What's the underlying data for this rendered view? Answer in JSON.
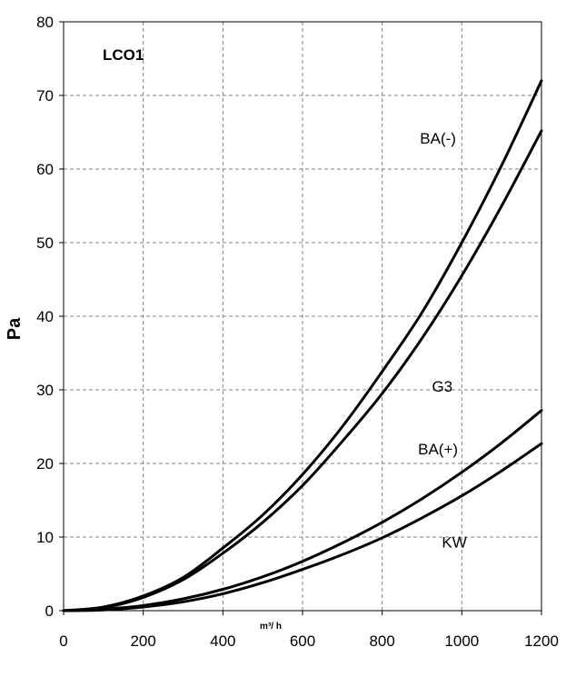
{
  "chart_data": {
    "type": "line",
    "title": "LCO1",
    "xlabel": "m³/ h",
    "ylabel": "Pa",
    "xlim": [
      0,
      1200
    ],
    "ylim": [
      0,
      80
    ],
    "x_ticks": [
      "0",
      "200",
      "400",
      "600",
      "800",
      "1000",
      "1200"
    ],
    "y_ticks": [
      "0",
      "10",
      "20",
      "30",
      "40",
      "50",
      "60",
      "70",
      "80"
    ],
    "grid": true,
    "x": [
      0,
      100,
      200,
      300,
      400,
      500,
      600,
      700,
      800,
      900,
      1000,
      1100,
      1200
    ],
    "series": [
      {
        "name": "BA(-)",
        "values": [
          0,
          0.5,
          2.0,
          4.5,
          8.5,
          13.0,
          18.5,
          25.0,
          32.5,
          40.5,
          50.0,
          60.5,
          72.0
        ]
      },
      {
        "name": "G3",
        "values": [
          0,
          0.4,
          1.8,
          4.2,
          7.8,
          12.0,
          17.0,
          23.0,
          29.5,
          37.0,
          45.5,
          55.0,
          65.2
        ]
      },
      {
        "name": "BA(+)",
        "values": [
          0,
          0.2,
          0.7,
          1.6,
          2.9,
          4.6,
          6.7,
          9.2,
          12.0,
          15.2,
          18.8,
          22.8,
          27.2
        ]
      },
      {
        "name": "KW",
        "values": [
          0,
          0.1,
          0.5,
          1.2,
          2.3,
          3.8,
          5.6,
          7.6,
          9.9,
          12.6,
          15.6,
          19.0,
          22.7
        ]
      }
    ],
    "annotations": [
      {
        "text": "BA(-)",
        "x": 895,
        "y": 64.2
      },
      {
        "text": "G3",
        "x": 925,
        "y": 30.5
      },
      {
        "text": "BA(+)",
        "x": 890,
        "y": 22.0
      },
      {
        "text": "KW",
        "x": 950,
        "y": 9.3
      }
    ],
    "line_color": "#000000",
    "grid_color": "#7f7f7f"
  }
}
